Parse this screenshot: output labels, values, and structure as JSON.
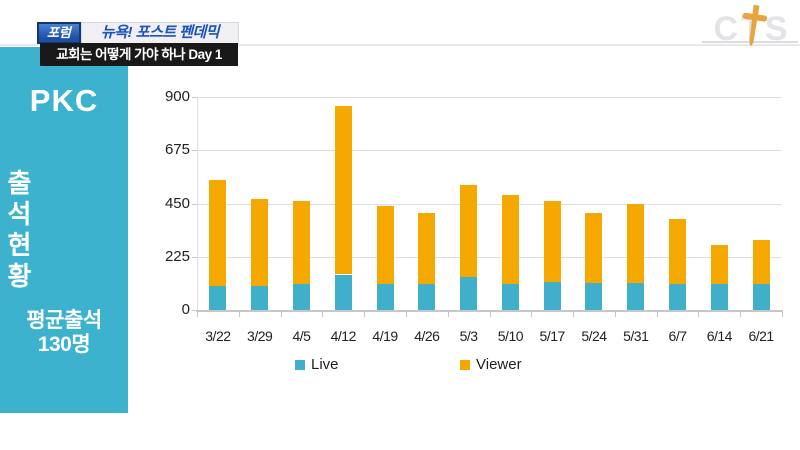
{
  "header": {
    "badge_label": "포럼",
    "program_title": "뉴욕! 포스트 펜데믹",
    "episode_subtitle": "교회는 어떻게 가야 하나 Day 1"
  },
  "logo": {
    "text": "CTS"
  },
  "sidebar": {
    "title": "PKC",
    "vertical_title": "출석현황",
    "average_label": "평균출석",
    "average_value": "130명",
    "bg_color": "#3CB2CE"
  },
  "chart_data": {
    "type": "bar",
    "stacked": true,
    "title": "",
    "xlabel": "",
    "ylabel": "",
    "categories": [
      "3/22",
      "3/29",
      "4/5",
      "4/12",
      "4/19",
      "4/26",
      "5/3",
      "5/10",
      "5/17",
      "5/24",
      "5/31",
      "6/7",
      "6/14",
      "6/21"
    ],
    "series": [
      {
        "name": "Live",
        "color": "#3FAFCA",
        "values": [
          100,
          100,
          110,
          150,
          110,
          110,
          140,
          110,
          120,
          115,
          115,
          110,
          110,
          110
        ]
      },
      {
        "name": "Viewer",
        "color": "#F5A800",
        "values": [
          450,
          370,
          350,
          710,
          330,
          300,
          390,
          375,
          340,
          295,
          335,
          275,
          165,
          185
        ]
      }
    ],
    "totals": [
      550,
      470,
      460,
      860,
      440,
      410,
      530,
      485,
      460,
      410,
      450,
      385,
      275,
      295
    ],
    "ylim": [
      0,
      900
    ],
    "yticks": [
      0,
      225,
      450,
      675,
      900
    ],
    "grid": true,
    "legend_position": "bottom"
  }
}
